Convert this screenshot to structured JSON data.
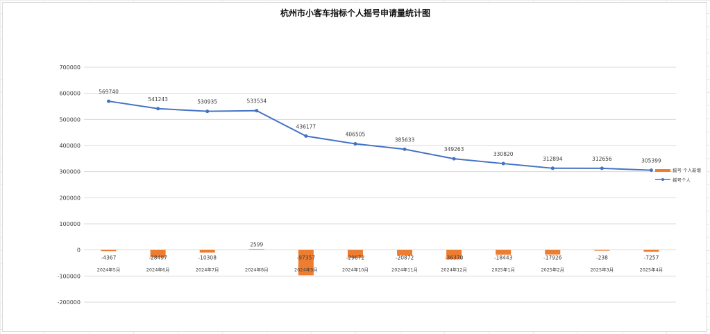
{
  "chart_data": {
    "type": "bar+line",
    "title": "杭州市小客车指标个人摇号申请量统计图",
    "categories": [
      "2024年5月",
      "2024年6月",
      "2024年7月",
      "2024年8月",
      "2024年9月",
      "2024年10月",
      "2024年11月",
      "2024年12月",
      "2025年1月",
      "2025年2月",
      "2025年3月",
      "2025年4月"
    ],
    "series": [
      {
        "name": "摇号 个人新增",
        "type": "bar",
        "color": "#ED7D31",
        "values": [
          -4367,
          -28497,
          -10308,
          2599,
          -97357,
          -29672,
          -20872,
          -36370,
          -18443,
          -17926,
          -238,
          -7257
        ]
      },
      {
        "name": "摇号个人",
        "type": "line",
        "color": "#4472C4",
        "values": [
          569740,
          541243,
          530935,
          533534,
          436177,
          406505,
          385633,
          349263,
          330820,
          312894,
          312656,
          305399
        ]
      }
    ],
    "ylim": [
      -200000,
      700000
    ],
    "yticks": [
      "700000",
      "600000",
      "500000",
      "400000",
      "300000",
      "200000",
      "100000",
      "0",
      "-100000",
      "-200000"
    ],
    "grid": true,
    "legend_position": "right"
  }
}
